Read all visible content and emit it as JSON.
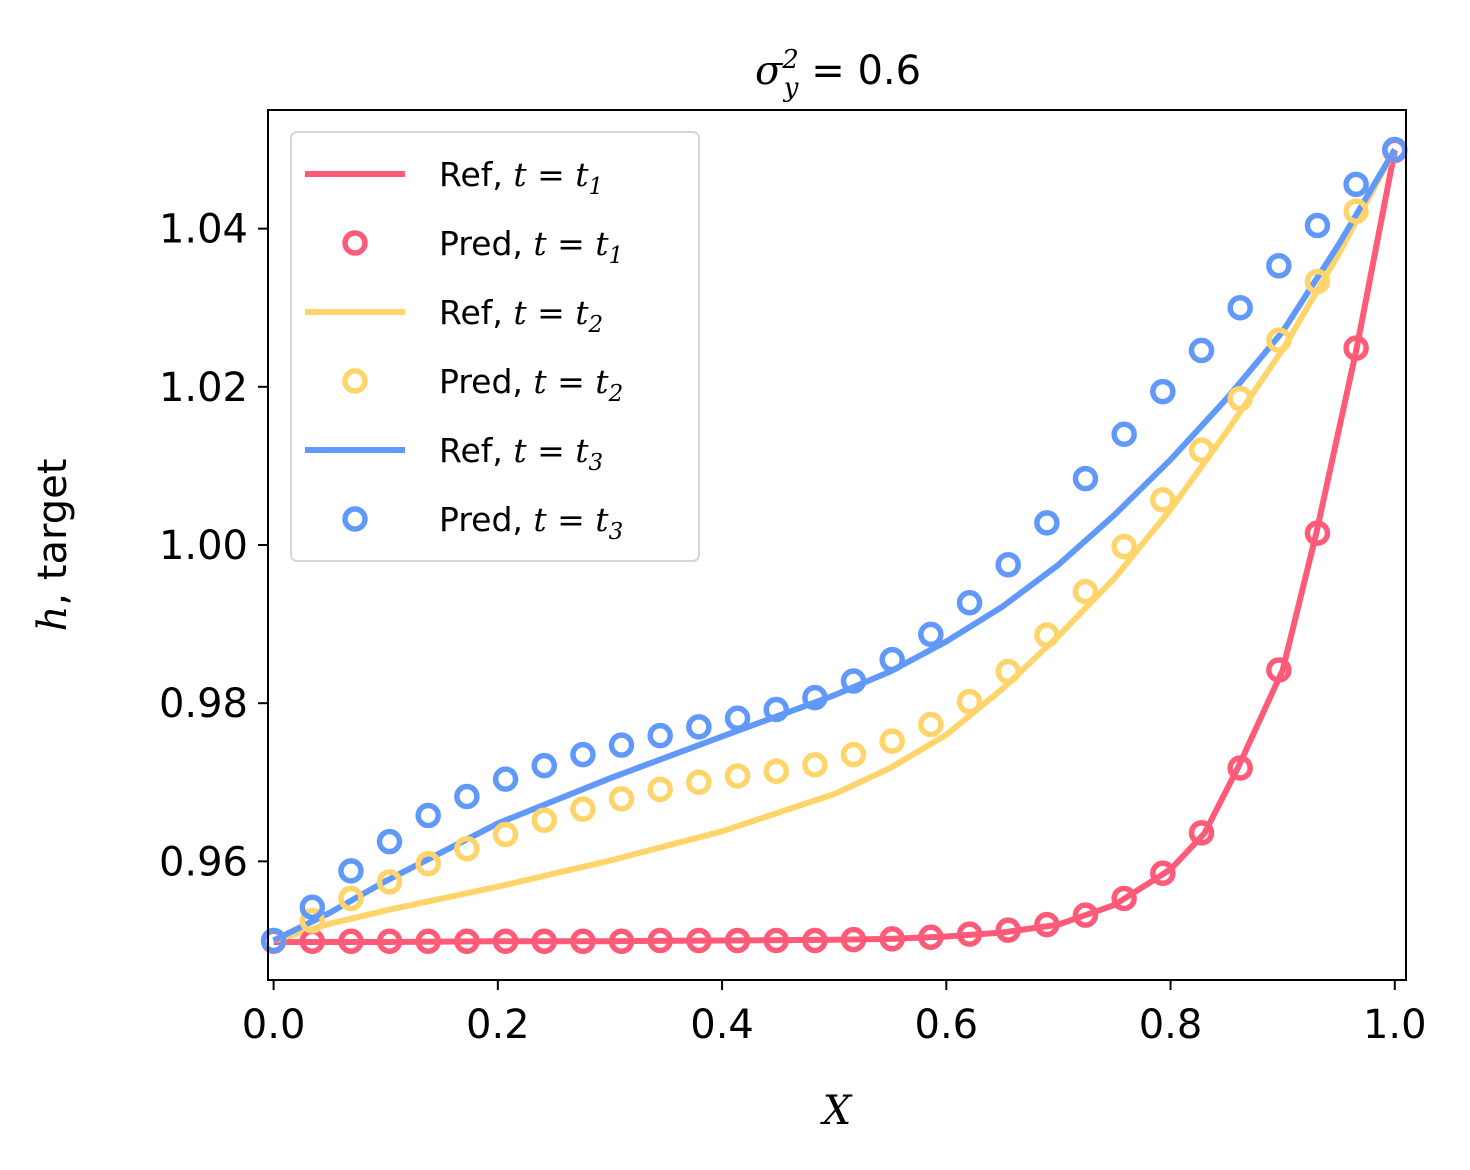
{
  "chart_data": {
    "type": "line",
    "title": {
      "sym": "σ",
      "sup": "2",
      "sub": "y",
      "rest": " = 0.6"
    },
    "xlabel": "X",
    "ylabel": {
      "italic": "h",
      "rest": ", target"
    },
    "xlim": [
      -0.005,
      1.01
    ],
    "ylim": [
      0.945,
      1.055
    ],
    "xticks": [
      0.0,
      0.2,
      0.4,
      0.6,
      0.8,
      1.0
    ],
    "xtick_labels": [
      "0.0",
      "0.2",
      "0.4",
      "0.6",
      "0.8",
      "1.0"
    ],
    "yticks": [
      0.96,
      0.98,
      1.0,
      1.02,
      1.04
    ],
    "ytick_labels": [
      "0.96",
      "0.98",
      "1.00",
      "1.02",
      "1.04"
    ],
    "legend_location": "top-left",
    "series": [
      {
        "name": "Ref, t = t1",
        "label_prefix": "Ref, ",
        "sub": "1",
        "kind": "line",
        "color": "#ff5a78",
        "x": [
          0.0,
          0.1,
          0.2,
          0.3,
          0.4,
          0.5,
          0.55,
          0.6,
          0.65,
          0.7,
          0.75,
          0.8,
          0.83,
          0.86,
          0.9,
          0.93,
          0.966,
          1.0
        ],
        "y": [
          0.9498,
          0.9498,
          0.9499,
          0.9499,
          0.95,
          0.9501,
          0.9502,
          0.9505,
          0.951,
          0.952,
          0.9545,
          0.959,
          0.9635,
          0.9718,
          0.9842,
          1.0015,
          1.0249,
          1.0499
        ]
      },
      {
        "name": "Pred, t = t1",
        "label_prefix": "Pred, ",
        "sub": "1",
        "kind": "markers",
        "color": "#ff5a78",
        "x": [
          0.0,
          0.0345,
          0.069,
          0.1034,
          0.1379,
          0.1724,
          0.2069,
          0.2414,
          0.2759,
          0.3103,
          0.3448,
          0.3793,
          0.4138,
          0.4483,
          0.4828,
          0.5172,
          0.5517,
          0.5862,
          0.6207,
          0.6552,
          0.6897,
          0.7241,
          0.7586,
          0.7931,
          0.8276,
          0.8621,
          0.8966,
          0.931,
          0.9655,
          1.0
        ],
        "y": [
          0.9499,
          0.9499,
          0.9499,
          0.9499,
          0.9499,
          0.9499,
          0.9499,
          0.9499,
          0.9499,
          0.9499,
          0.95,
          0.95,
          0.95,
          0.95,
          0.95,
          0.9501,
          0.9502,
          0.9504,
          0.9508,
          0.9513,
          0.952,
          0.9532,
          0.9553,
          0.9585,
          0.9636,
          0.9718,
          0.9842,
          1.0015,
          1.0249,
          1.0499
        ]
      },
      {
        "name": "Ref, t = t2",
        "label_prefix": "Ref, ",
        "sub": "2",
        "kind": "line",
        "color": "#ffd56b",
        "x": [
          0.0,
          0.05,
          0.1,
          0.2,
          0.3,
          0.4,
          0.5,
          0.55,
          0.6,
          0.65,
          0.7,
          0.75,
          0.8,
          0.85,
          0.9,
          0.95,
          1.0
        ],
        "y": [
          0.95,
          0.9521,
          0.9538,
          0.9568,
          0.9601,
          0.9638,
          0.9685,
          0.9718,
          0.976,
          0.9818,
          0.9885,
          0.9958,
          1.0045,
          1.0143,
          1.0247,
          1.0368,
          1.05
        ]
      },
      {
        "name": "Pred, t = t2",
        "label_prefix": "Pred, ",
        "sub": "2",
        "kind": "markers",
        "color": "#ffd56b",
        "x": [
          0.0,
          0.0345,
          0.069,
          0.1034,
          0.1379,
          0.1724,
          0.2069,
          0.2414,
          0.2759,
          0.3103,
          0.3448,
          0.3793,
          0.4138,
          0.4483,
          0.4828,
          0.5172,
          0.5517,
          0.5862,
          0.6207,
          0.6552,
          0.6897,
          0.7241,
          0.7586,
          0.7931,
          0.8276,
          0.8621,
          0.8966,
          0.931,
          0.9655,
          1.0
        ],
        "y": [
          0.95,
          0.9525,
          0.9553,
          0.9574,
          0.9597,
          0.9616,
          0.9634,
          0.9652,
          0.9666,
          0.9679,
          0.9691,
          0.97,
          0.9708,
          0.9714,
          0.9722,
          0.9735,
          0.9752,
          0.9773,
          0.9802,
          0.984,
          0.9886,
          0.9941,
          0.9998,
          1.0057,
          1.012,
          1.0185,
          1.0259,
          1.0333,
          1.0422,
          1.05
        ]
      },
      {
        "name": "Ref, t = t3",
        "label_prefix": "Ref, ",
        "sub": "3",
        "kind": "line",
        "color": "#6199fb",
        "x": [
          0.0,
          0.05,
          0.1,
          0.2,
          0.3,
          0.4,
          0.5,
          0.55,
          0.6,
          0.65,
          0.7,
          0.75,
          0.8,
          0.85,
          0.9,
          0.95,
          1.0
        ],
        "y": [
          0.95,
          0.9535,
          0.9575,
          0.9648,
          0.9705,
          0.9758,
          0.981,
          0.984,
          0.9878,
          0.9922,
          0.9975,
          1.0038,
          1.0108,
          1.0185,
          1.027,
          1.038,
          1.05
        ]
      },
      {
        "name": "Pred, t = t3",
        "label_prefix": "Pred, ",
        "sub": "3",
        "kind": "markers",
        "color": "#6199fb",
        "x": [
          0.0,
          0.0345,
          0.069,
          0.1034,
          0.1379,
          0.1724,
          0.2069,
          0.2414,
          0.2759,
          0.3103,
          0.3448,
          0.3793,
          0.4138,
          0.4483,
          0.4828,
          0.5172,
          0.5517,
          0.5862,
          0.6207,
          0.6552,
          0.6897,
          0.7241,
          0.7586,
          0.7931,
          0.8276,
          0.8621,
          0.8966,
          0.931,
          0.9655,
          1.0
        ],
        "y": [
          0.95,
          0.9542,
          0.9588,
          0.9625,
          0.9658,
          0.9682,
          0.9704,
          0.9721,
          0.9735,
          0.9747,
          0.9759,
          0.977,
          0.9781,
          0.9792,
          0.9807,
          0.9828,
          0.9855,
          0.9887,
          0.9927,
          0.9975,
          1.0028,
          1.0084,
          1.014,
          1.0194,
          1.0246,
          1.03,
          1.0353,
          1.0404,
          1.0456,
          1.05
        ]
      }
    ]
  }
}
